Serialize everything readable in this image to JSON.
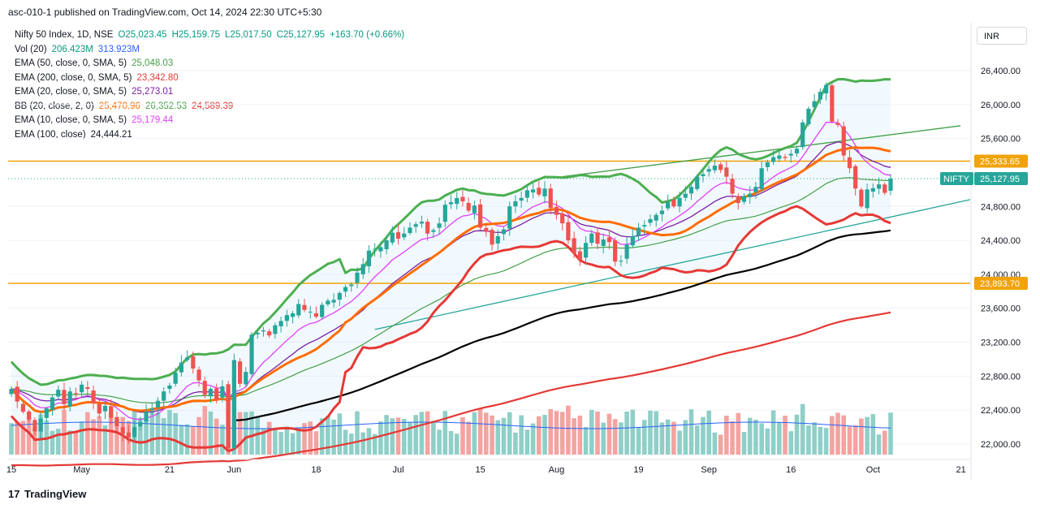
{
  "header": {
    "caption": "asc-010-1 published on TradingView.com, Oct 14, 2024 22:30 UTC+5:30"
  },
  "legend": [
    {
      "label": "Nifty 50 Index, 1D, NSE",
      "values": [
        "O25,023.45",
        "H25,159.75",
        "L25,017.50",
        "C25,127.95",
        "+163.70 (+0.66%)"
      ],
      "color": "#089981"
    },
    {
      "label": "Vol (20)",
      "values": [
        "206.423M",
        "313.923M"
      ],
      "colors": [
        "#089981",
        "#2962ff"
      ]
    },
    {
      "label": "EMA (50, close, 0, SMA, 5)",
      "values": [
        "25,048.03"
      ],
      "color": "#43a047"
    },
    {
      "label": "EMA (200, close, 0, SMA, 5)",
      "values": [
        "23,342.80"
      ],
      "color": "#e53935"
    },
    {
      "label": "EMA (20, close, 0, SMA, 5)",
      "values": [
        "25,273.01"
      ],
      "color": "#7b1fa2"
    },
    {
      "label": "BB (20, close, 2, 0)",
      "values": [
        "25,470.96",
        "26,352.53",
        "24,589.39"
      ],
      "colors": [
        "#ff6d00",
        "#43a047",
        "#e53935"
      ]
    },
    {
      "label": "EMA (10, close, 0, SMA, 5)",
      "values": [
        "25,179.44"
      ],
      "color": "#e040fb"
    },
    {
      "label": "EMA (100, close)",
      "values": [
        "24,444.21"
      ],
      "color": "#131722"
    }
  ],
  "currency": "INR",
  "footer": {
    "brand": "TradingView"
  },
  "colors": {
    "up": "#26a69a",
    "down": "#ef5350",
    "vol_up": "#8fcfc8",
    "vol_down": "#f4a3a1",
    "bb_basis": "#ff6d00",
    "bb_upper": "#4caf50",
    "bb_lower": "#e53935",
    "ema200": "#e53935",
    "ema100": "#000000",
    "ema50": "#43a047",
    "ema20": "#7b1fa2",
    "ema10": "#e040fb",
    "hline": "#f0a30a",
    "trend": "#26a69a"
  },
  "chart_data": {
    "type": "candlestick",
    "title": "Nifty 50 Index, 1D, NSE",
    "ylim": [
      21800,
      26800
    ],
    "y_ticks": [
      "22,000.00",
      "22,400.00",
      "22,800.00",
      "23,200.00",
      "23,600.00",
      "24,000.00",
      "24,400.00",
      "24,800.00",
      "25,600.00",
      "26,000.00",
      "26,400.00"
    ],
    "y_tick_values": [
      22000,
      22400,
      22800,
      23200,
      23600,
      24000,
      24400,
      24800,
      25600,
      26000,
      26400
    ],
    "x_ticks": [
      "15",
      "May",
      "21",
      "Jun",
      "18",
      "Jul",
      "15",
      "Aug",
      "19",
      "Sep",
      "16",
      "Oct",
      "21"
    ],
    "x_tick_index": [
      0,
      12,
      27,
      38,
      52,
      66,
      80,
      93,
      107,
      119,
      133,
      147,
      162
    ],
    "price_tags": [
      {
        "label": "25,333.65",
        "value": 25333.65,
        "color": "#f0a30a"
      },
      {
        "label": "25,127.95",
        "value": 25127.95,
        "color": "#26a69a",
        "name": "NIFTY"
      },
      {
        "label": "23,893.70",
        "value": 23893.7,
        "color": "#f0a30a"
      }
    ],
    "horizontal_levels": [
      25333.65,
      23893.7
    ],
    "current_price": 25127.95,
    "closes": [
      22650,
      22500,
      22380,
      22290,
      22150,
      22300,
      22420,
      22550,
      22640,
      22470,
      22620,
      22590,
      22700,
      22650,
      22480,
      22360,
      22450,
      22310,
      22210,
      22120,
      22080,
      22200,
      22260,
      22380,
      22420,
      22510,
      22620,
      22690,
      22840,
      22960,
      23020,
      22890,
      22750,
      22580,
      22650,
      22520,
      22680,
      21950,
      22990,
      22710,
      22850,
      23290,
      23310,
      23340,
      23280,
      23400,
      23450,
      23520,
      23540,
      23650,
      23580,
      23560,
      23500,
      23640,
      23690,
      23700,
      23780,
      23850,
      23880,
      24020,
      24120,
      24280,
      24300,
      24320,
      24400,
      24490,
      24420,
      24480,
      24550,
      24590,
      24620,
      24480,
      24520,
      24600,
      24820,
      24850,
      24900,
      24860,
      24750,
      24810,
      24550,
      24500,
      24350,
      24450,
      24530,
      24800,
      24860,
      24900,
      24990,
      25000,
      24940,
      25010,
      24780,
      24700,
      24600,
      24400,
      24250,
      24170,
      24370,
      24480,
      24360,
      24410,
      24380,
      24150,
      24160,
      24350,
      24450,
      24550,
      24580,
      24650,
      24700,
      24750,
      24850,
      24800,
      24900,
      24950,
      25030,
      25150,
      25180,
      25240,
      25280,
      25230,
      25150,
      24950,
      24840,
      24920,
      24950,
      25030,
      25250,
      25320,
      25380,
      25400,
      25370,
      25420,
      25480,
      25790,
      25950,
      26040,
      26150,
      26230,
      25800,
      25760,
      25400,
      25250,
      25010,
      24800,
      25000,
      25015,
      25060,
      24960,
      25128
    ]
  }
}
